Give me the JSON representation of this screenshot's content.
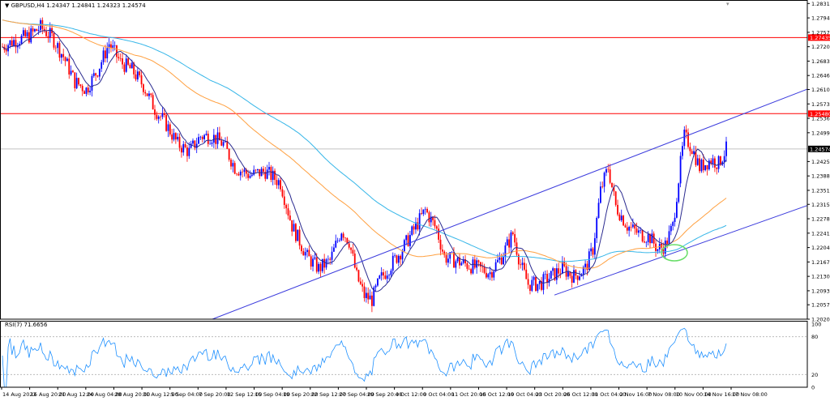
{
  "chart_data": [
    {
      "type": "candlestick",
      "symbol_label": "GBPUSD,H4",
      "ohlc_label": "1.24347 1.24841 1.24323 1.24574",
      "last_price": "1.24574",
      "x_tick_labels": [
        "14 Aug 2023",
        "16 Aug 20:00",
        "21 Aug 12:00",
        "24 Aug 04:00",
        "28 Aug 20:00",
        "31 Aug 12:00",
        "5 Sep 04:00",
        "7 Sep 20:00",
        "12 Sep 12:00",
        "15 Sep 04:00",
        "19 Sep 20:00",
        "22 Sep 12:00",
        "27 Sep 04:00",
        "29 Sep 20:00",
        "4 Oct 12:00",
        "9 Oct 04:00",
        "11 Oct 20:00",
        "16 Oct 12:00",
        "19 Oct 04:00",
        "23 Oct 20:00",
        "26 Oct 12:00",
        "31 Oct 04:00",
        "2 Nov 16:00",
        "7 Nov 08:00",
        "10 Nov 00:00",
        "14 Nov 16:00",
        "17 Nov 08:00"
      ],
      "y_tick_labels": [
        "1.28310",
        "1.27940",
        "1.27570",
        "1.27200",
        "1.26830",
        "1.26460",
        "1.26100",
        "1.25730",
        "1.25360",
        "1.24990",
        "1.24250",
        "1.23880",
        "1.23510",
        "1.23150",
        "1.22780",
        "1.22410",
        "1.22040",
        "1.21670",
        "1.21300",
        "1.20930",
        "1.20570",
        "1.20200"
      ],
      "ylim": [
        1.202,
        1.284
      ],
      "horizontal_lines": [
        {
          "price": 1.27435,
          "label": "1.27435",
          "color": "#ff0000"
        },
        {
          "price": 1.2548,
          "label": "1.25480",
          "color": "#ff0000"
        }
      ],
      "channel_lines_color": "#3b3bdd",
      "bull_color": "#0000ff",
      "bear_color": "#ff0000",
      "ma_colors": [
        "#2a2a8f",
        "#ffa040",
        "#36b6e8"
      ],
      "highlight_circle_color": "#66dd66"
    },
    {
      "type": "line",
      "indicator_label": "RSI(7) 71.6656",
      "y_tick_labels": [
        "100",
        "80",
        "20",
        "0"
      ],
      "levels": [
        80,
        20
      ],
      "ylim": [
        0,
        100
      ],
      "line_color": "#1e90ff"
    }
  ]
}
